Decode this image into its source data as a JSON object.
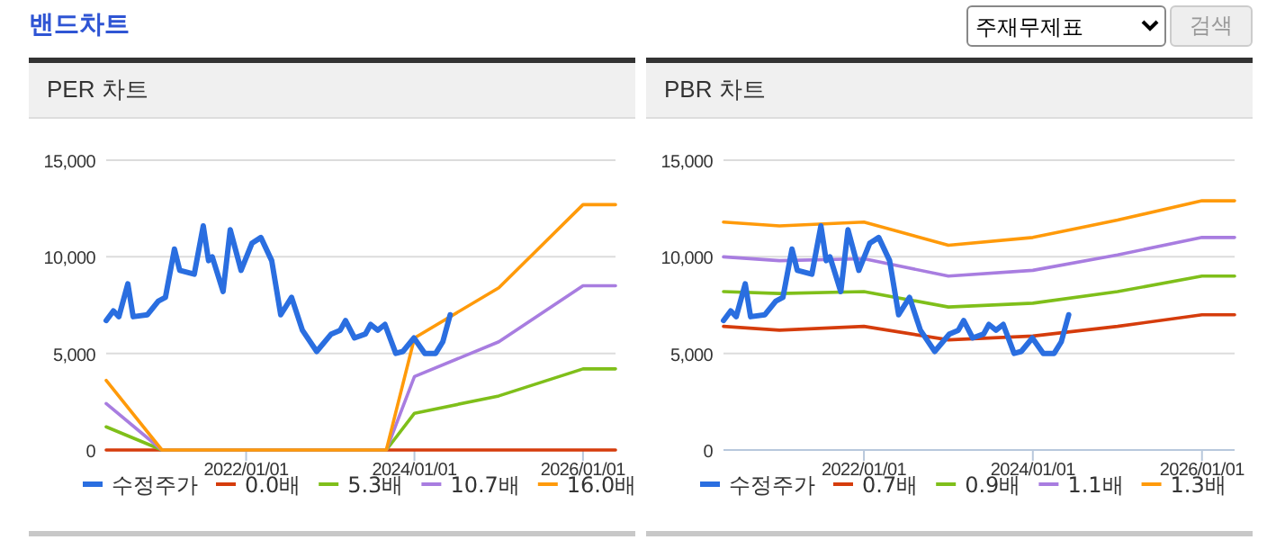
{
  "chart_data": [
    {
      "type": "other",
      "title": "밴드차트",
      "annotations": [
        "주재무제표",
        "검색"
      ]
    },
    {
      "type": "line",
      "title": "PER 차트",
      "xlim": [
        "2020-05-04",
        "2026-05-22"
      ],
      "ylim": [
        0,
        15000
      ],
      "xticks": [
        {
          "value": "2022-01-01",
          "label": "2022/01/01"
        },
        {
          "value": "2024-01-01",
          "label": "2024/01/01"
        },
        {
          "value": "2026-01-01",
          "label": "2026/01/01"
        }
      ],
      "yticks": [
        0,
        {
          "value": 5000,
          "label": "5,000"
        },
        {
          "value": 10000,
          "label": "10,000"
        },
        {
          "value": 15000,
          "label": "15,000"
        }
      ],
      "grid": "y",
      "legend": "bottom",
      "series": [
        {
          "name": "수정주가",
          "color": "#2a6ee0",
          "x": [
            "2020-05-04",
            "2020-06-04",
            "2020-06-28",
            "2020-08-06",
            "2020-08-29",
            "2020-10-30",
            "2020-12-16",
            "2021-01-16",
            "2021-02-24",
            "2021-03-19",
            "2021-05-21",
            "2021-06-29",
            "2021-07-22",
            "2021-08-07",
            "2021-09-23",
            "2021-10-24",
            "2021-12-10",
            "2022-01-26",
            "2022-03-06",
            "2022-04-22",
            "2022-05-31",
            "2022-07-17",
            "2022-09-02",
            "2022-11-03",
            "2023-01-05",
            "2023-02-13",
            "2023-03-08",
            "2023-04-16",
            "2023-06-02",
            "2023-06-25",
            "2023-07-26",
            "2023-08-26",
            "2023-10-12",
            "2023-11-12",
            "2023-12-30",
            "2024-02-15",
            "2024-04-02",
            "2024-05-03",
            "2024-06-04"
          ],
          "values": [
            6700,
            7200,
            6900,
            8600,
            6900,
            7000,
            7700,
            7900,
            10400,
            9300,
            9100,
            11600,
            9800,
            10000,
            8200,
            11400,
            9300,
            10700,
            11000,
            9800,
            7000,
            7900,
            6200,
            5100,
            6000,
            6200,
            6700,
            5800,
            6000,
            6500,
            6200,
            6500,
            5000,
            5100,
            5800,
            5000,
            5000,
            5600,
            7000
          ]
        },
        {
          "name": "0.0배",
          "color": "#d53c0c",
          "x": [
            "2020-05-04",
            "2021-01-01",
            "2023-09-01",
            "2024-01-01",
            "2025-01-01",
            "2026-01-01",
            "2026-05-22"
          ],
          "values": [
            0,
            0,
            0,
            0,
            0,
            0,
            0
          ]
        },
        {
          "name": "5.3배",
          "color": "#7fbf1a",
          "x": [
            "2020-05-04",
            "2021-01-01",
            "2023-09-01",
            "2024-01-01",
            "2025-01-01",
            "2026-01-01",
            "2026-05-22"
          ],
          "values": [
            1200,
            0,
            0,
            1900,
            2800,
            4200,
            4200
          ]
        },
        {
          "name": "10.7배",
          "color": "#a87de0",
          "x": [
            "2020-05-04",
            "2021-01-01",
            "2023-09-01",
            "2024-01-01",
            "2025-01-01",
            "2026-01-01",
            "2026-05-22"
          ],
          "values": [
            2400,
            0,
            0,
            3800,
            5600,
            8500,
            8500
          ]
        },
        {
          "name": "16.0배",
          "color": "#ff9a0a",
          "x": [
            "2020-05-04",
            "2021-01-01",
            "2023-09-01",
            "2024-01-01",
            "2025-01-01",
            "2026-01-01",
            "2026-05-22"
          ],
          "values": [
            3600,
            0,
            0,
            5800,
            8400,
            12700,
            12700
          ]
        }
      ]
    },
    {
      "type": "line",
      "title": "PBR 차트",
      "xlim": [
        "2020-05-04",
        "2026-05-22"
      ],
      "ylim": [
        0,
        15000
      ],
      "xticks": [
        {
          "value": "2022-01-01",
          "label": "2022/01/01"
        },
        {
          "value": "2024-01-01",
          "label": "2024/01/01"
        },
        {
          "value": "2026-01-01",
          "label": "2026/01/01"
        }
      ],
      "yticks": [
        0,
        {
          "value": 5000,
          "label": "5,000"
        },
        {
          "value": 10000,
          "label": "10,000"
        },
        {
          "value": 15000,
          "label": "15,000"
        }
      ],
      "grid": "y",
      "legend": "bottom",
      "series": [
        {
          "name": "수정주가",
          "color": "#2a6ee0",
          "x": [
            "2020-05-04",
            "2020-06-04",
            "2020-06-28",
            "2020-08-06",
            "2020-08-29",
            "2020-10-30",
            "2020-12-16",
            "2021-01-16",
            "2021-02-24",
            "2021-03-19",
            "2021-05-21",
            "2021-06-29",
            "2021-07-22",
            "2021-08-07",
            "2021-09-23",
            "2021-10-24",
            "2021-12-10",
            "2022-01-26",
            "2022-03-06",
            "2022-04-22",
            "2022-05-31",
            "2022-07-17",
            "2022-09-02",
            "2022-11-03",
            "2023-01-05",
            "2023-02-13",
            "2023-03-08",
            "2023-04-16",
            "2023-06-02",
            "2023-06-25",
            "2023-07-26",
            "2023-08-26",
            "2023-10-12",
            "2023-11-12",
            "2023-12-30",
            "2024-02-15",
            "2024-04-02",
            "2024-05-03",
            "2024-06-04"
          ],
          "values": [
            6700,
            7200,
            6900,
            8600,
            6900,
            7000,
            7700,
            7900,
            10400,
            9300,
            9100,
            11600,
            9800,
            10000,
            8200,
            11400,
            9300,
            10700,
            11000,
            9800,
            7000,
            7900,
            6200,
            5100,
            6000,
            6200,
            6700,
            5800,
            6000,
            6500,
            6200,
            6500,
            5000,
            5100,
            5800,
            5000,
            5000,
            5600,
            7000
          ]
        },
        {
          "name": "0.7배",
          "color": "#d53c0c",
          "x": [
            "2020-05-04",
            "2021-01-01",
            "2022-01-01",
            "2023-01-01",
            "2024-01-01",
            "2025-01-01",
            "2026-01-01",
            "2026-05-22"
          ],
          "values": [
            6400,
            6200,
            6400,
            5700,
            5900,
            6400,
            7000,
            7000
          ]
        },
        {
          "name": "0.9배",
          "color": "#7fbf1a",
          "x": [
            "2020-05-04",
            "2021-01-01",
            "2022-01-01",
            "2023-01-01",
            "2024-01-01",
            "2025-01-01",
            "2026-01-01",
            "2026-05-22"
          ],
          "values": [
            8200,
            8100,
            8200,
            7400,
            7600,
            8200,
            9000,
            9000
          ]
        },
        {
          "name": "1.1배",
          "color": "#a87de0",
          "x": [
            "2020-05-04",
            "2021-01-01",
            "2022-01-01",
            "2023-01-01",
            "2024-01-01",
            "2025-01-01",
            "2026-01-01",
            "2026-05-22"
          ],
          "values": [
            10000,
            9800,
            9900,
            9000,
            9300,
            10100,
            11000,
            11000
          ]
        },
        {
          "name": "1.3배",
          "color": "#ff9a0a",
          "x": [
            "2020-05-04",
            "2021-01-01",
            "2022-01-01",
            "2023-01-01",
            "2024-01-01",
            "2025-01-01",
            "2026-01-01",
            "2026-05-22"
          ],
          "values": [
            11800,
            11600,
            11800,
            10600,
            11000,
            11900,
            12900,
            12900
          ]
        }
      ]
    }
  ]
}
